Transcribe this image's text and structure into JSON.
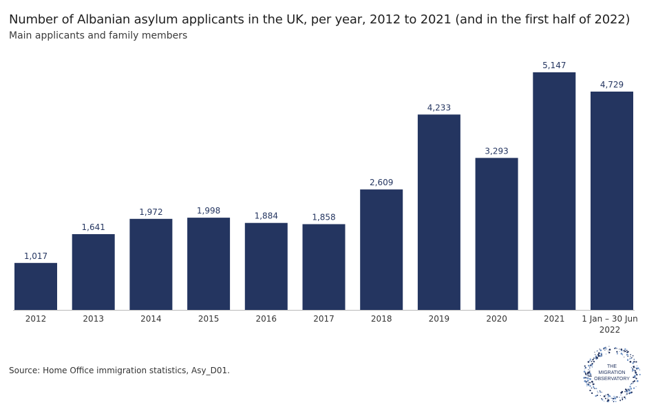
{
  "chart_data": {
    "type": "bar",
    "title": "Number of Albanian asylum applicants in the UK, per year, 2012 to 2021 (and in the first half of 2022)",
    "subtitle": "Main applicants and family members",
    "categories": [
      "2012",
      "2013",
      "2014",
      "2015",
      "2016",
      "2017",
      "2018",
      "2019",
      "2020",
      "2021",
      [
        "1 Jan – 30 Jun",
        "2022"
      ]
    ],
    "values": [
      1017,
      1641,
      1972,
      1998,
      1884,
      1858,
      2609,
      4233,
      3293,
      5147,
      4729
    ],
    "value_labels": [
      "1,017",
      "1,641",
      "1,972",
      "1,998",
      "1,884",
      "1,858",
      "2,609",
      "4,233",
      "3,293",
      "5,147",
      "4,729"
    ],
    "xlabel": "",
    "ylabel": "",
    "ylim": [
      0,
      5147
    ],
    "grid": false,
    "bar_color": "#243560"
  },
  "source": "Source: Home Office immigration statistics, Asy_D01.",
  "logo": {
    "lines": [
      "THE",
      "MIGRATION",
      "OBSERVATORY"
    ]
  }
}
